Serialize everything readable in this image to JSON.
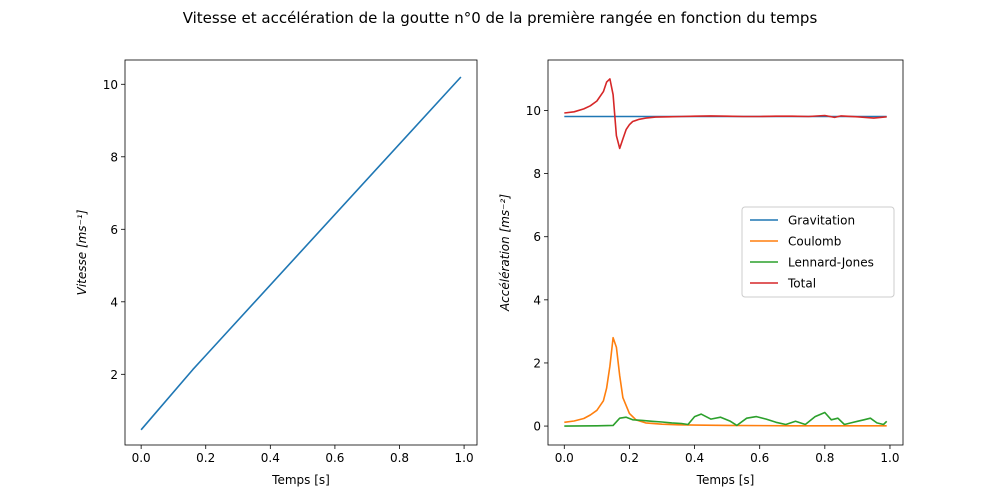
{
  "figure": {
    "title": "Vitesse et accélération de la goutte n°0 de la première rangée en fonction du temps"
  },
  "chart_data": [
    {
      "type": "line",
      "title": "",
      "xlabel": "Temps [s]",
      "ylabel": "Vitesse [ms⁻¹]",
      "xlim": [
        -0.05,
        1.04
      ],
      "ylim": [
        0.05,
        10.67
      ],
      "xticks": [
        "0.0",
        "0.2",
        "0.4",
        "0.6",
        "0.8",
        "1.0"
      ],
      "yticks": [
        "2",
        "4",
        "6",
        "8",
        "10"
      ],
      "grid": false,
      "series": [
        {
          "color": "#1f77b4",
          "x": [
            0.0,
            0.16,
            0.2,
            0.99
          ],
          "y": [
            0.47,
            2.13,
            2.52,
            10.2
          ]
        }
      ]
    },
    {
      "type": "line",
      "title": "",
      "xlabel": "Temps [s]",
      "ylabel": "Accélération [ms⁻²]",
      "xlim": [
        -0.05,
        1.04
      ],
      "ylim": [
        -0.6,
        11.6
      ],
      "xticks": [
        "0.0",
        "0.2",
        "0.4",
        "0.6",
        "0.8",
        "1.0"
      ],
      "yticks": [
        "0",
        "2",
        "4",
        "6",
        "8",
        "10"
      ],
      "grid": false,
      "legend_position": "center-right",
      "series": [
        {
          "name": "Gravitation",
          "color": "#1f77b4",
          "x": [
            0.0,
            0.99
          ],
          "y": [
            9.81,
            9.81
          ]
        },
        {
          "name": "Coulomb",
          "color": "#ff7f0e",
          "x": [
            0.0,
            0.03,
            0.06,
            0.08,
            0.1,
            0.12,
            0.13,
            0.14,
            0.15,
            0.16,
            0.17,
            0.18,
            0.2,
            0.22,
            0.25,
            0.3,
            0.35,
            0.4,
            0.5,
            0.7,
            0.99
          ],
          "y": [
            0.12,
            0.16,
            0.24,
            0.35,
            0.5,
            0.8,
            1.2,
            1.9,
            2.8,
            2.5,
            1.6,
            0.9,
            0.4,
            0.2,
            0.1,
            0.06,
            0.04,
            0.03,
            0.02,
            0.01,
            0.01
          ]
        },
        {
          "name": "Lennard-Jones",
          "color": "#2ca02c",
          "x": [
            0.0,
            0.1,
            0.15,
            0.17,
            0.19,
            0.21,
            0.24,
            0.27,
            0.3,
            0.33,
            0.36,
            0.38,
            0.4,
            0.42,
            0.45,
            0.48,
            0.51,
            0.53,
            0.56,
            0.59,
            0.62,
            0.65,
            0.68,
            0.71,
            0.74,
            0.77,
            0.8,
            0.82,
            0.84,
            0.86,
            0.88,
            0.9,
            0.92,
            0.94,
            0.96,
            0.98,
            0.99
          ],
          "y": [
            0.0,
            0.01,
            0.02,
            0.25,
            0.28,
            0.2,
            0.18,
            0.15,
            0.13,
            0.1,
            0.08,
            0.05,
            0.3,
            0.38,
            0.22,
            0.28,
            0.15,
            0.02,
            0.25,
            0.3,
            0.22,
            0.12,
            0.05,
            0.15,
            0.05,
            0.3,
            0.43,
            0.2,
            0.25,
            0.05,
            0.1,
            0.15,
            0.2,
            0.25,
            0.1,
            0.05,
            0.15
          ]
        },
        {
          "name": "Total",
          "color": "#d62728",
          "x": [
            0.0,
            0.03,
            0.06,
            0.08,
            0.1,
            0.12,
            0.13,
            0.14,
            0.15,
            0.16,
            0.17,
            0.18,
            0.19,
            0.2,
            0.21,
            0.23,
            0.25,
            0.28,
            0.32,
            0.36,
            0.4,
            0.45,
            0.5,
            0.55,
            0.6,
            0.65,
            0.7,
            0.75,
            0.8,
            0.83,
            0.85,
            0.9,
            0.95,
            0.99
          ],
          "y": [
            9.92,
            9.96,
            10.05,
            10.15,
            10.3,
            10.6,
            10.9,
            11.0,
            10.5,
            9.2,
            8.8,
            9.1,
            9.4,
            9.55,
            9.65,
            9.72,
            9.76,
            9.79,
            9.8,
            9.81,
            9.82,
            9.83,
            9.82,
            9.81,
            9.81,
            9.82,
            9.82,
            9.81,
            9.84,
            9.78,
            9.83,
            9.8,
            9.76,
            9.8
          ]
        }
      ]
    }
  ]
}
